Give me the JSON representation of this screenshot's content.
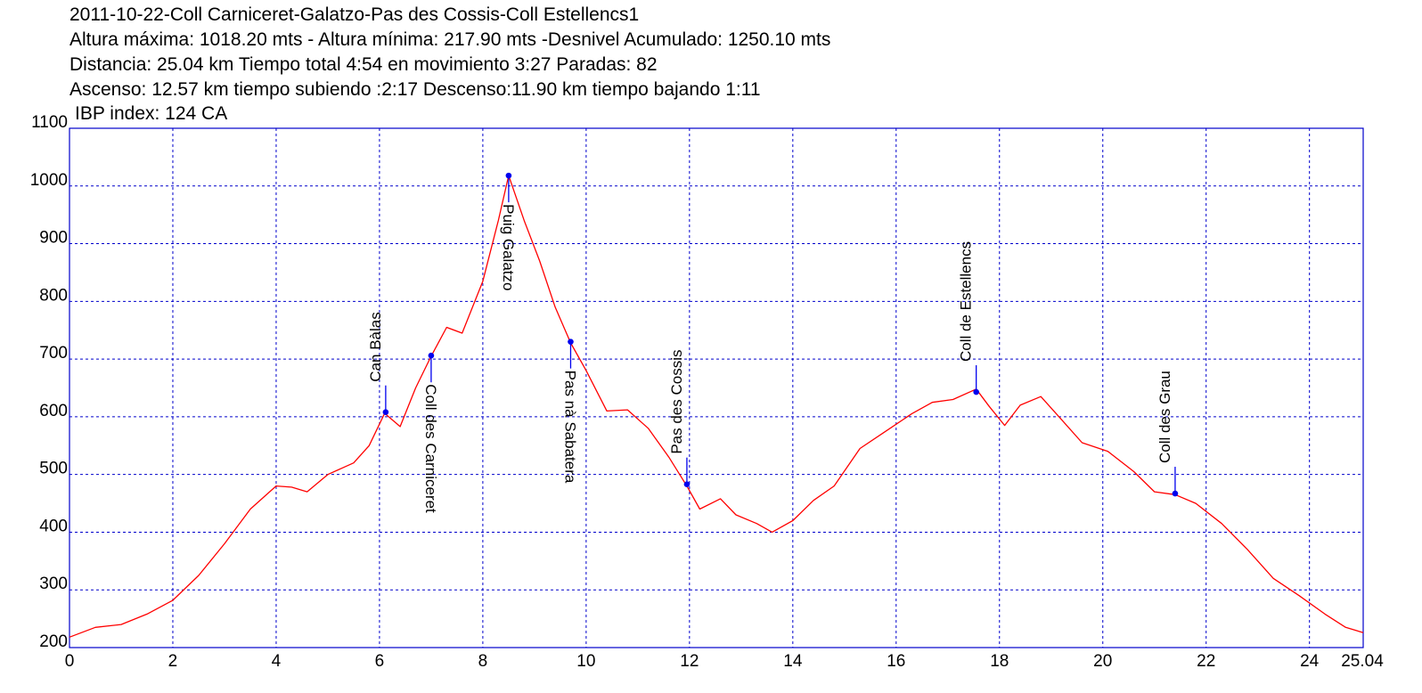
{
  "header": {
    "line1": "2011-10-22-Coll Carniceret-Galatzo-Pas des Cossis-Coll Estellencs1",
    "line2": "Altura máxima: 1018.20 mts - Altura mínima: 217.90 mts -Desnivel Acumulado: 1250.10 mts",
    "line3": "Distancia: 25.04 km  Tiempo total 4:54  en movimiento 3:27 Paradas: 82",
    "line4": "Ascenso: 12.57 km  tiempo subiendo :2:17  Descenso:11.90 km tiempo bajando 1:11",
    "line5": "IBP index: 124 CA"
  },
  "chart_data": {
    "type": "line",
    "xlim": [
      0,
      25.04
    ],
    "ylim": [
      200,
      1100
    ],
    "x_ticks": [
      "0",
      "2",
      "4",
      "6",
      "8",
      "10",
      "12",
      "14",
      "16",
      "18",
      "20",
      "22",
      "24",
      "25.04"
    ],
    "y_ticks": [
      "200",
      "300",
      "400",
      "500",
      "600",
      "700",
      "800",
      "900",
      "1000",
      "1100"
    ],
    "grid": true,
    "colors": {
      "line": "#ff0000",
      "axis": "#0000cc",
      "grid": "#0000cc",
      "marker": "#0000ee"
    },
    "series": [
      {
        "x": [
          0,
          0.5,
          1.0,
          1.5,
          2.0,
          2.5,
          3.0,
          3.5,
          4.0,
          4.3,
          4.6,
          5.0,
          5.5,
          5.8,
          6.1,
          6.4,
          6.7,
          7.0,
          7.3,
          7.6,
          8.0,
          8.3,
          8.5,
          8.8,
          9.1,
          9.4,
          9.7,
          10.0,
          10.4,
          10.8,
          11.2,
          11.6,
          11.95,
          12.2,
          12.6,
          12.9,
          13.3,
          13.6,
          14.0,
          14.4,
          14.8,
          15.3,
          15.8,
          16.3,
          16.7,
          17.1,
          17.55,
          17.8,
          18.1,
          18.4,
          18.8,
          19.2,
          19.6,
          20.1,
          20.6,
          21.0,
          21.4,
          21.8,
          22.3,
          22.8,
          23.3,
          23.8,
          24.3,
          24.7,
          25.04
        ],
        "y": [
          218,
          235,
          240,
          258,
          282,
          325,
          380,
          440,
          480,
          478,
          470,
          500,
          520,
          550,
          606,
          583,
          650,
          705,
          755,
          745,
          835,
          940,
          1018,
          940,
          870,
          790,
          728,
          680,
          610,
          612,
          580,
          530,
          480,
          440,
          458,
          430,
          415,
          400,
          420,
          455,
          480,
          545,
          575,
          605,
          625,
          630,
          648,
          618,
          585,
          620,
          635,
          595,
          555,
          540,
          505,
          470,
          465,
          450,
          415,
          370,
          320,
          290,
          258,
          235,
          226
        ]
      }
    ],
    "waypoints": [
      {
        "name": "Can Bàlas",
        "x": 6.12,
        "y": 608,
        "label_side": "above"
      },
      {
        "name": "Coll des Carniceret",
        "x": 7.0,
        "y": 706,
        "label_side": "below"
      },
      {
        "name": "Puig Galatzo",
        "x": 8.5,
        "y": 1018,
        "label_side": "below"
      },
      {
        "name": "Pas nà Sabatera",
        "x": 9.7,
        "y": 730,
        "label_side": "below"
      },
      {
        "name": "Pas des Cossis",
        "x": 11.95,
        "y": 483,
        "label_side": "above"
      },
      {
        "name": "Coll de Estellencs",
        "x": 17.55,
        "y": 643,
        "label_side": "above"
      },
      {
        "name": "Coll des Grau",
        "x": 21.4,
        "y": 467,
        "label_side": "above"
      }
    ]
  }
}
